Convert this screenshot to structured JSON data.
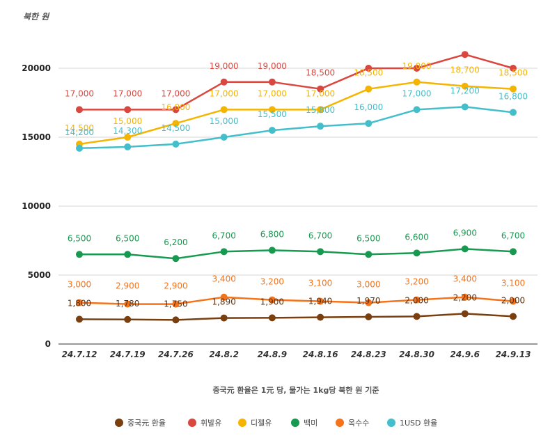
{
  "chart_data": {
    "type": "line",
    "unit_label": "북한 원",
    "xlabel": "중국元 환율은 1元 당, 물가는 1kg당 북한 원 기준",
    "ylabel": "",
    "ylim": [
      0,
      22000
    ],
    "yticks": [
      0,
      5000,
      10000,
      15000,
      20000
    ],
    "grid": true,
    "legend_position": "bottom",
    "categories": [
      "24.7.12",
      "24.7.19",
      "24.7.26",
      "24.8.2",
      "24.8.9",
      "24.8.16",
      "24.8.23",
      "24.8.30",
      "24.9.6",
      "24.9.13"
    ],
    "series": [
      {
        "name": "중국元 환율",
        "color": "#7a3f0f",
        "values": [
          1800,
          1780,
          1750,
          1890,
          1900,
          1940,
          1970,
          2000,
          2200,
          2000
        ],
        "labels": [
          "1,800",
          "1,780",
          "1,750",
          "1,890",
          "1,900",
          "1,940",
          "1,970",
          "2,000",
          "2,200",
          "2,000"
        ]
      },
      {
        "name": "휘발유",
        "color": "#d9473f",
        "values": [
          17000,
          17000,
          17000,
          19000,
          19000,
          18500,
          20000,
          20000,
          21000,
          20000
        ],
        "labels": [
          "17,000",
          "17,000",
          "17,000",
          "19,000",
          "19,000",
          "18,500",
          "",
          "",
          "",
          ""
        ]
      },
      {
        "name": "디젤유",
        "color": "#f4b400",
        "values": [
          14500,
          15000,
          16000,
          17000,
          17000,
          17000,
          18500,
          19000,
          18700,
          18500
        ],
        "labels": [
          "14,500",
          "15,000",
          "16,000",
          "17,000",
          "17,000",
          "17,000",
          "18,500",
          "19,000",
          "18,700",
          "18,500"
        ]
      },
      {
        "name": "백미",
        "color": "#159a4f",
        "values": [
          6500,
          6500,
          6200,
          6700,
          6800,
          6700,
          6500,
          6600,
          6900,
          6700
        ],
        "labels": [
          "6,500",
          "6,500",
          "6,200",
          "6,700",
          "6,800",
          "6,700",
          "6,500",
          "6,600",
          "6,900",
          "6,700"
        ]
      },
      {
        "name": "옥수수",
        "color": "#f5731b",
        "values": [
          3000,
          2900,
          2900,
          3400,
          3200,
          3100,
          3000,
          3200,
          3400,
          3100
        ],
        "labels": [
          "3,000",
          "2,900",
          "2,900",
          "3,400",
          "3,200",
          "3,100",
          "3,000",
          "3,200",
          "3,400",
          "3,100"
        ]
      },
      {
        "name": "1USD 환율",
        "color": "#42bfcb",
        "values": [
          14200,
          14300,
          14500,
          15000,
          15500,
          15800,
          16000,
          17000,
          17200,
          16800
        ],
        "labels": [
          "14,200",
          "14,300",
          "14,500",
          "15,000",
          "15,500",
          "15,800",
          "16,000",
          "17,000",
          "17,200",
          "16,800"
        ]
      }
    ]
  }
}
